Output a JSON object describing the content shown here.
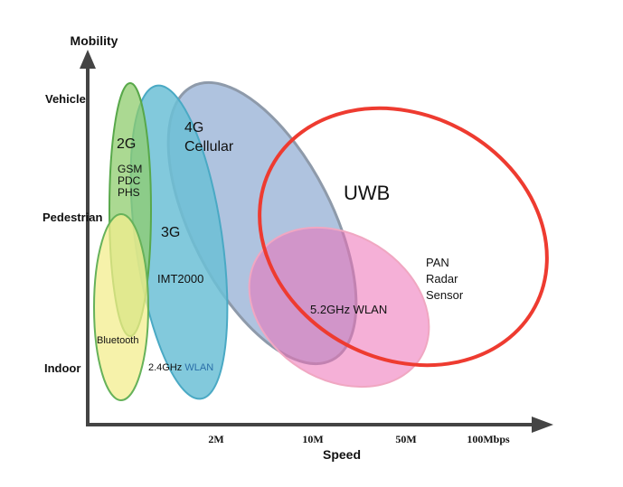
{
  "axes": {
    "y_title": "Mobility",
    "x_title": "Speed",
    "y_levels": [
      "Vehicle",
      "Pedestrian",
      "Indoor"
    ],
    "x_ticks": [
      "2M",
      "10M",
      "50M",
      "100Mbps"
    ]
  },
  "regions": {
    "g2": {
      "title": "2G",
      "systems": [
        "GSM",
        "PDC",
        "PHS"
      ]
    },
    "bluetooth": {
      "label": "Bluetooth"
    },
    "g3": {
      "title": "3G",
      "system": "IMT2000",
      "wlan_prefix": "2.4GHz",
      "wlan_suffix": "WLAN"
    },
    "g4": {
      "title_line1": "4G",
      "title_line2": "Cellular"
    },
    "wlan52": {
      "label": "5.2GHz WLAN"
    },
    "uwb": {
      "title": "UWB",
      "apps": [
        "PAN",
        "Radar",
        "Sensor"
      ]
    }
  },
  "colors": {
    "g2_fill": "#8fcc6e",
    "g2_stroke": "#58a84a",
    "bluetooth_fill": "#f3ee8e",
    "bluetooth_stroke": "#66b25a",
    "g3_fill": "#6cc0d6",
    "g3_stroke": "#4aa9c4",
    "g4_fill": "#7a9bca",
    "g4_stroke": "#8e9aaa",
    "wlan_fill": "#ec6fb6",
    "wlan_stroke": "#f0a7c2",
    "uwb_stroke": "#ee3b30",
    "uwb_text": "#ee2d24",
    "axis": "#444444"
  }
}
